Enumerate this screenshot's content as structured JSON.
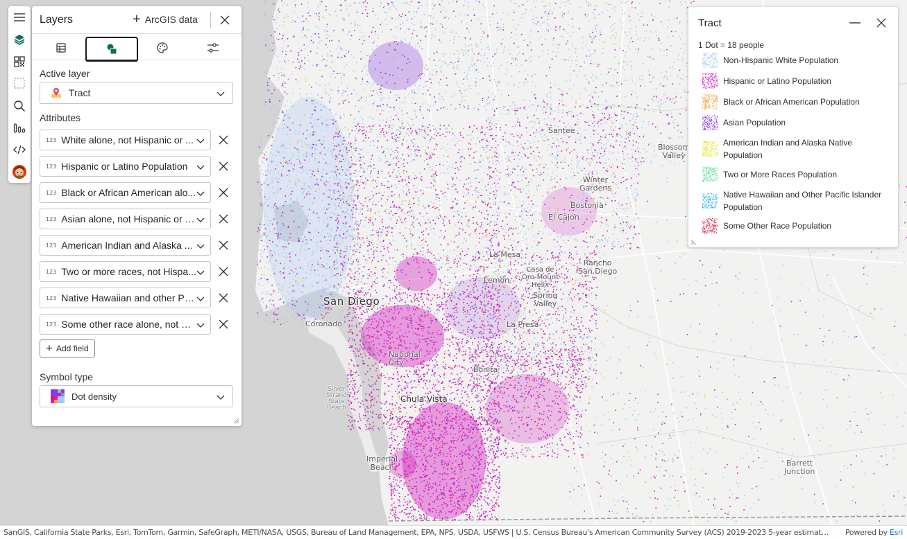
{
  "toolbar": {
    "items": [
      {
        "name": "menu-icon"
      },
      {
        "name": "layers-icon"
      },
      {
        "name": "basemap-gallery-icon"
      },
      {
        "name": "select-icon"
      },
      {
        "name": "search-icon"
      },
      {
        "name": "analytics-icon"
      },
      {
        "name": "code-icon"
      },
      {
        "name": "avatar-icon"
      }
    ]
  },
  "layers_panel": {
    "title": "Layers",
    "add_data_label": "ArcGIS data",
    "tabs": [
      {
        "name": "table-icon"
      },
      {
        "name": "layers-style-icon",
        "active": true
      },
      {
        "name": "palette-icon"
      },
      {
        "name": "settings-sliders-icon"
      }
    ],
    "active_layer_label": "Active layer",
    "active_layer_value": "Tract",
    "attributes_label": "Attributes",
    "attribute_type_badge": "123",
    "attributes": [
      "White alone, not Hispanic or ...",
      "Hispanic or Latino Population",
      "Black or African American alo...",
      "Asian alone, not Hispanic or L...",
      "American Indian and Alaska ...",
      "Two or more races, not Hispa...",
      "Native Hawaiian and other Pa...",
      "Some other race alone, not Hi..."
    ],
    "add_field_label": "Add field",
    "symbol_type_label": "Symbol type",
    "symbol_type_value": "Dot density"
  },
  "legend": {
    "title": "Tract",
    "dot_value": "1 Dot = 18 people",
    "items": [
      {
        "label": "Non-Hispanic White Population",
        "color": "#a9c8f5"
      },
      {
        "label": "Hispanic or Latino Population",
        "color": "#d61ac0"
      },
      {
        "label": "Black or African American Population",
        "color": "#f2a23a"
      },
      {
        "label": "Asian Population",
        "color": "#8b3ae0"
      },
      {
        "label": "American Indian and Alaska Native Population",
        "color": "#e8e020"
      },
      {
        "label": "Two or More Races Population",
        "color": "#5edb9a"
      },
      {
        "label": "Native Hawaiian and Other Pacific Islander Population",
        "color": "#3ab0e8"
      },
      {
        "label": "Some Other Race Population",
        "color": "#d8234a"
      }
    ]
  },
  "map": {
    "labels": {
      "san_diego": "San Diego",
      "coronado": "Coronado",
      "chula_vista": "Chula Vista",
      "national_city": "National\nCity",
      "el_cajon": "El Cajon",
      "la_mesa": "La Mesa",
      "santee": "Santee",
      "blossom_valley": "Blossom\nValley",
      "winter_gardens": "Winter\nGardens",
      "bostonia": "Bostonia",
      "rancho_san_diego": "Rancho\nSan Diego",
      "spring_valley": "Spring\nValley",
      "lemon_grove": "Lemon",
      "casa_de_oro": "Casa de\nOro-Mount\nHelix",
      "la_presa": "La Presa",
      "bonita": "Bonita",
      "imperial_beach": "Imperial\nBeach",
      "barrett_junction": "Barrett\nJunction",
      "silver_strand": "Silver\nStrand\nState\nBeach"
    }
  },
  "attribution": {
    "text": "SanGIS, California State Parks, Esri, TomTom, Garmin, SafeGraph, METI/NASA, USGS, Bureau of Land Management, EPA, NPS, USDA, USFWS | U.S. Census Bureau's American Community Survey (ACS) 2019-2023 5-year estimates, Table(s) B0...",
    "powered_by": "Powered by",
    "esri": "Esri"
  }
}
